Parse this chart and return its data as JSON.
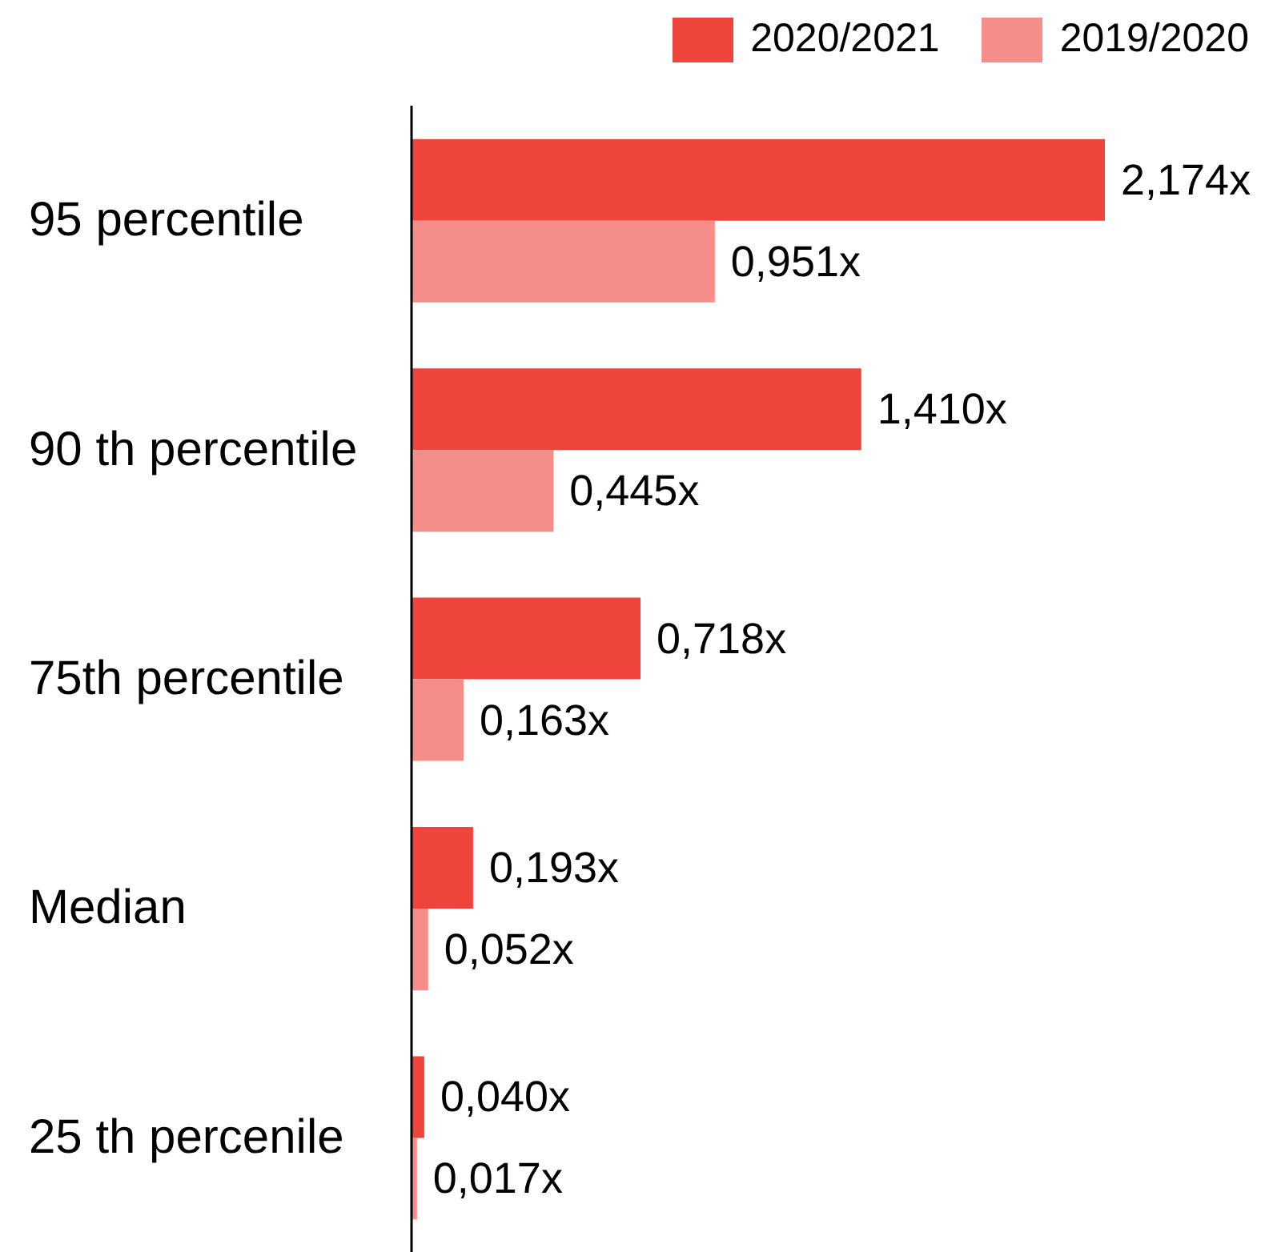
{
  "chart_data": {
    "type": "bar",
    "orientation": "horizontal",
    "categories": [
      "95 percentile",
      "90 th percentile",
      "75th percentile",
      "Median",
      "25 th percenile"
    ],
    "series": [
      {
        "name": "2020/2021",
        "color": "#ef443b",
        "values": [
          2.174,
          1.41,
          0.718,
          0.193,
          0.04
        ],
        "value_labels": [
          "2,174x",
          "1,410x",
          "0,718x",
          "0,193x",
          "0,040x"
        ]
      },
      {
        "name": "2019/2020",
        "color": "#f58d89",
        "values": [
          0.951,
          0.445,
          0.163,
          0.052,
          0.017
        ],
        "value_labels": [
          "0,951x",
          "0,445x",
          "0,163x",
          "0,052x",
          "0,017x"
        ]
      }
    ],
    "legend": "top right",
    "tick_labels": "y"
  }
}
